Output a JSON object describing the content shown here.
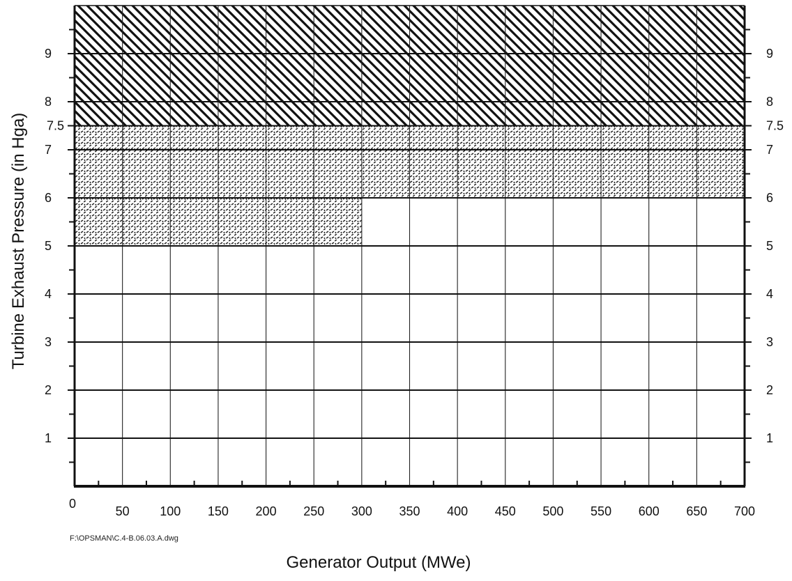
{
  "chart_data": {
    "type": "area",
    "title": "",
    "xlabel": "Generator Output (MWe)",
    "ylabel": "Turbine Exhaust Pressure (in Hga)",
    "xlim": [
      0,
      700
    ],
    "ylim": [
      0,
      10
    ],
    "x_ticks": [
      0,
      50,
      100,
      150,
      200,
      250,
      300,
      350,
      400,
      450,
      500,
      550,
      600,
      650,
      700
    ],
    "x_tick_labels": [
      "0",
      "50",
      "100",
      "150",
      "200",
      "250",
      "300",
      "350",
      "400",
      "450",
      "500",
      "550",
      "600",
      "650",
      "700"
    ],
    "y_ticks_left": [
      1,
      2,
      3,
      4,
      5,
      6,
      7,
      7.5,
      8,
      9
    ],
    "y_tick_labels_left": [
      "1",
      "2",
      "3",
      "4",
      "5",
      "6",
      "7",
      "7.5",
      "8",
      "9"
    ],
    "y_ticks_right": [
      1,
      2,
      3,
      4,
      5,
      6,
      7,
      7.5,
      8,
      9
    ],
    "y_tick_labels_right": [
      "1",
      "2",
      "3",
      "4",
      "5",
      "6",
      "7",
      "7.5",
      "8",
      "9"
    ],
    "grid": true,
    "regions": [
      {
        "pattern": "diagonal-hatch",
        "polygon": [
          [
            0,
            7.5
          ],
          [
            700,
            7.5
          ],
          [
            700,
            10
          ],
          [
            0,
            10
          ]
        ]
      },
      {
        "pattern": "dotted-hatch",
        "polygon": [
          [
            0,
            5
          ],
          [
            300,
            5
          ],
          [
            300,
            6
          ],
          [
            700,
            6
          ],
          [
            700,
            7.5
          ],
          [
            0,
            7.5
          ]
        ]
      }
    ],
    "file_note": "F:\\OPSMAN\\C.4-B.06.03.A.dwg"
  }
}
